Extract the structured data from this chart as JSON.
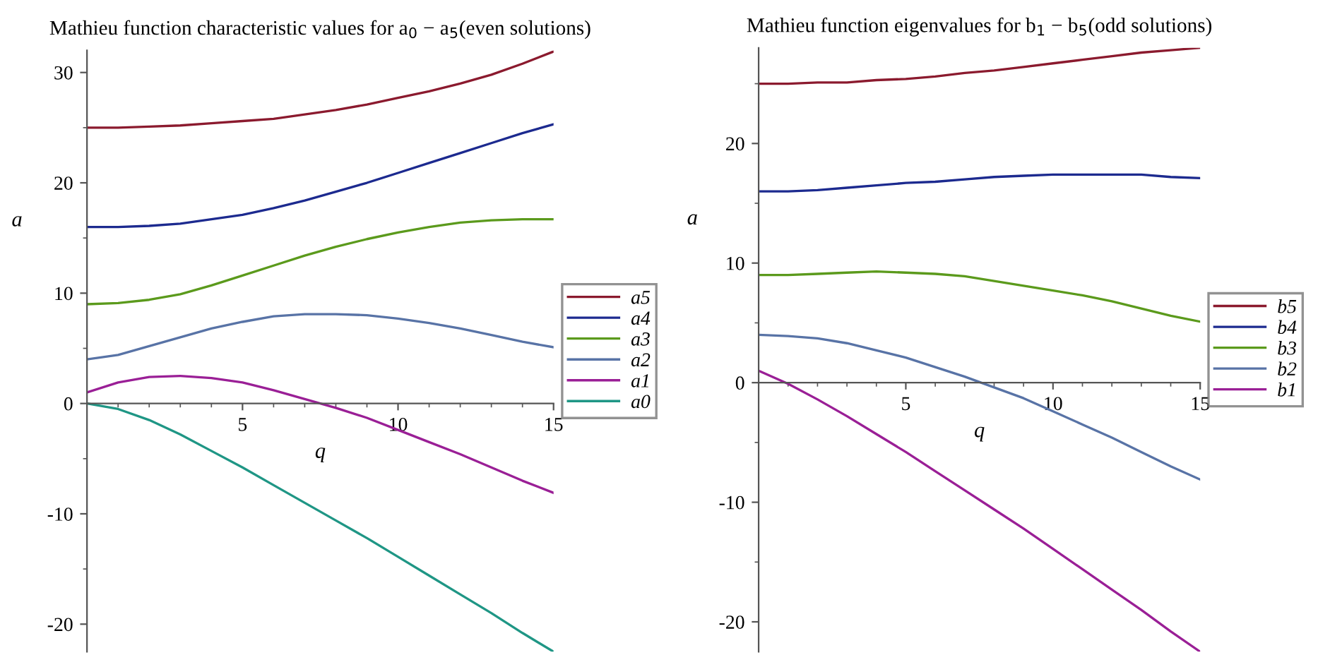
{
  "chart_data": [
    {
      "type": "line",
      "title": "Mathieu function characteristic values for a$_{0}$ − a$_{5}$(even solutions)",
      "xlabel": "q",
      "ylabel": "a",
      "x": [
        0,
        1,
        2,
        3,
        4,
        5,
        6,
        7,
        8,
        9,
        10,
        11,
        12,
        13,
        14,
        15
      ],
      "series": [
        {
          "name": "a5",
          "color": "#8b1a2e",
          "values": [
            25,
            25,
            25.1,
            25.2,
            25.4,
            25.6,
            25.8,
            26.2,
            26.6,
            27.1,
            27.7,
            28.3,
            29,
            29.8,
            30.8,
            31.9
          ]
        },
        {
          "name": "a4",
          "color": "#1c2a8f",
          "values": [
            16,
            16,
            16.1,
            16.3,
            16.7,
            17.1,
            17.7,
            18.4,
            19.2,
            20,
            20.9,
            21.8,
            22.7,
            23.6,
            24.5,
            25.3
          ]
        },
        {
          "name": "a3",
          "color": "#5b9a1c",
          "values": [
            9,
            9.1,
            9.4,
            9.9,
            10.7,
            11.6,
            12.5,
            13.4,
            14.2,
            14.9,
            15.5,
            16,
            16.4,
            16.6,
            16.7,
            16.7
          ]
        },
        {
          "name": "a2",
          "color": "#5873a6",
          "values": [
            4,
            4.4,
            5.2,
            6,
            6.8,
            7.4,
            7.9,
            8.1,
            8.1,
            8,
            7.7,
            7.3,
            6.8,
            6.2,
            5.6,
            5.1
          ]
        },
        {
          "name": "a1",
          "color": "#9a1f96",
          "values": [
            1,
            1.9,
            2.4,
            2.5,
            2.3,
            1.9,
            1.2,
            0.4,
            -0.4,
            -1.3,
            -2.4,
            -3.5,
            -4.6,
            -5.8,
            -7,
            -8.1
          ]
        },
        {
          "name": "a0",
          "color": "#1f9685",
          "values": [
            0,
            -0.5,
            -1.5,
            -2.8,
            -4.3,
            -5.8,
            -7.4,
            -9,
            -10.6,
            -12.2,
            -13.9,
            -15.6,
            -17.3,
            -19,
            -20.8,
            -22.5
          ]
        }
      ],
      "xlim": [
        0,
        15
      ],
      "ylim": [
        -22.5,
        32
      ],
      "xticks": [
        5,
        10,
        15
      ],
      "yticks": [
        -20,
        -10,
        0,
        10,
        20,
        30
      ],
      "legend": "right"
    },
    {
      "type": "line",
      "title": "Mathieu function eigenvalues for b$_{1}$ − b$_{5}$(odd solutions)",
      "xlabel": "q",
      "ylabel": "a",
      "x": [
        0,
        1,
        2,
        3,
        4,
        5,
        6,
        7,
        8,
        9,
        10,
        11,
        12,
        13,
        14,
        15
      ],
      "series": [
        {
          "name": "b5",
          "color": "#8b1a2e",
          "values": [
            25,
            25,
            25.1,
            25.1,
            25.3,
            25.4,
            25.6,
            25.9,
            26.1,
            26.4,
            26.7,
            27,
            27.3,
            27.6,
            27.8,
            28
          ]
        },
        {
          "name": "b4",
          "color": "#1c2a8f",
          "values": [
            16,
            16,
            16.1,
            16.3,
            16.5,
            16.7,
            16.8,
            17,
            17.2,
            17.3,
            17.4,
            17.4,
            17.4,
            17.4,
            17.2,
            17.1
          ]
        },
        {
          "name": "b3",
          "color": "#5b9a1c",
          "values": [
            9,
            9,
            9.1,
            9.2,
            9.3,
            9.2,
            9.1,
            8.9,
            8.5,
            8.1,
            7.7,
            7.3,
            6.8,
            6.2,
            5.6,
            5.1
          ]
        },
        {
          "name": "b2",
          "color": "#5873a6",
          "values": [
            4,
            3.9,
            3.7,
            3.3,
            2.7,
            2.1,
            1.3,
            0.5,
            -0.4,
            -1.3,
            -2.4,
            -3.5,
            -4.6,
            -5.8,
            -7,
            -8.1
          ]
        },
        {
          "name": "b1",
          "color": "#9a1f96",
          "values": [
            1,
            -0.1,
            -1.4,
            -2.8,
            -4.3,
            -5.8,
            -7.4,
            -9,
            -10.6,
            -12.2,
            -13.9,
            -15.6,
            -17.3,
            -19,
            -20.8,
            -22.5
          ]
        }
      ],
      "xlim": [
        0,
        15
      ],
      "ylim": [
        -22.5,
        28
      ],
      "xticks": [
        5,
        10,
        15
      ],
      "yticks": [
        -20,
        -10,
        0,
        10,
        20
      ],
      "legend": "right"
    }
  ]
}
